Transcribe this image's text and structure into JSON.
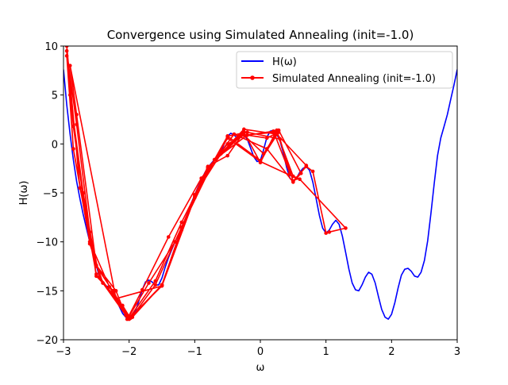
{
  "chart_data": {
    "type": "line",
    "title": "Convergence using Simulated Annealing (init=-1.0)",
    "xlabel": "ω",
    "ylabel": "H(ω)",
    "xlim": [
      -3,
      3
    ],
    "ylim": [
      -20,
      10
    ],
    "xticks": [
      -3,
      -2,
      -1,
      0,
      1,
      2,
      3
    ],
    "xtick_labels": [
      "−3",
      "−2",
      "−1",
      "0",
      "1",
      "2",
      "3"
    ],
    "yticks": [
      -20,
      -15,
      -10,
      -5,
      0,
      5,
      10
    ],
    "ytick_labels": [
      "−20",
      "−15",
      "−10",
      "−5",
      "0",
      "5",
      "10"
    ],
    "grid": false,
    "legend_position": "top-right",
    "series": [
      {
        "name": "H(ω)",
        "color": "#0000ff",
        "marker": "none",
        "x": [
          -3.0,
          -2.95,
          -2.9,
          -2.85,
          -2.8,
          -2.75,
          -2.7,
          -2.65,
          -2.6,
          -2.55,
          -2.5,
          -2.45,
          -2.4,
          -2.35,
          -2.3,
          -2.25,
          -2.2,
          -2.15,
          -2.1,
          -2.05,
          -2.0,
          -1.95,
          -1.9,
          -1.85,
          -1.8,
          -1.75,
          -1.7,
          -1.65,
          -1.6,
          -1.55,
          -1.5,
          -1.45,
          -1.4,
          -1.35,
          -1.3,
          -1.25,
          -1.2,
          -1.15,
          -1.1,
          -1.05,
          -1.0,
          -0.95,
          -0.9,
          -0.85,
          -0.8,
          -0.75,
          -0.7,
          -0.65,
          -0.6,
          -0.55,
          -0.5,
          -0.45,
          -0.4,
          -0.35,
          -0.3,
          -0.25,
          -0.2,
          -0.15,
          -0.1,
          -0.05,
          0.0,
          0.05,
          0.1,
          0.15,
          0.2,
          0.25,
          0.3,
          0.35,
          0.4,
          0.45,
          0.5,
          0.55,
          0.6,
          0.65,
          0.7,
          0.75,
          0.8,
          0.85,
          0.9,
          0.95,
          1.0,
          1.05,
          1.1,
          1.15,
          1.2,
          1.25,
          1.3,
          1.35,
          1.4,
          1.45,
          1.5,
          1.55,
          1.6,
          1.65,
          1.7,
          1.75,
          1.8,
          1.85,
          1.9,
          1.95,
          2.0,
          2.05,
          2.1,
          2.15,
          2.2,
          2.25,
          2.3,
          2.35,
          2.4,
          2.45,
          2.5,
          2.55,
          2.6,
          2.65,
          2.7,
          2.75,
          2.8,
          2.85,
          2.9,
          2.95,
          3.0
        ],
        "y": [
          7.6,
          4.0,
          1.0,
          -1.6,
          -3.8,
          -5.6,
          -7.2,
          -8.6,
          -10.0,
          -11.2,
          -12.4,
          -13.6,
          -14.2,
          -14.5,
          -14.6,
          -15.0,
          -15.8,
          -16.6,
          -17.3,
          -17.7,
          -17.9,
          -17.7,
          -17.0,
          -16.0,
          -14.9,
          -14.1,
          -13.9,
          -14.1,
          -14.4,
          -14.4,
          -13.7,
          -12.6,
          -11.6,
          -10.8,
          -10.0,
          -9.3,
          -8.6,
          -7.8,
          -6.9,
          -6.0,
          -5.2,
          -4.4,
          -3.7,
          -3.0,
          -2.4,
          -2.0,
          -1.6,
          -1.3,
          -0.8,
          0.0,
          0.8,
          1.1,
          0.9,
          0.6,
          0.7,
          0.9,
          0.5,
          -0.4,
          -1.3,
          -1.8,
          -1.7,
          -0.6,
          0.7,
          1.3,
          1.4,
          1.0,
          0.3,
          -0.9,
          -2.4,
          -3.5,
          -3.8,
          -3.5,
          -2.9,
          -2.5,
          -2.3,
          -2.7,
          -3.9,
          -5.6,
          -7.3,
          -8.6,
          -9.1,
          -8.8,
          -8.2,
          -7.8,
          -8.2,
          -9.4,
          -11.1,
          -12.8,
          -14.2,
          -14.9,
          -15.0,
          -14.4,
          -13.6,
          -13.1,
          -13.3,
          -14.2,
          -15.6,
          -16.9,
          -17.7,
          -17.9,
          -17.4,
          -16.2,
          -14.7,
          -13.4,
          -12.8,
          -12.7,
          -13.0,
          -13.5,
          -13.6,
          -13.1,
          -11.9,
          -9.9,
          -7.1,
          -4.0,
          -1.2,
          0.6,
          1.8,
          3.0,
          4.5,
          6.0,
          7.6
        ]
      },
      {
        "name": "Simulated Annealing (init=-1.0)",
        "color": "#ff0000",
        "marker": "circle",
        "x": [
          -1.0,
          -0.8,
          -0.5,
          -0.25,
          0.0,
          0.25,
          0.5,
          0.7,
          0.8,
          1.0,
          1.05,
          1.3,
          0.6,
          0.5,
          0.25,
          -0.25,
          -0.5,
          -0.8,
          -1.0,
          -1.2,
          -1.5,
          -2.0,
          -2.5,
          -2.85,
          -2.95,
          -2.8,
          -2.6,
          -2.5,
          -2.4,
          -2.05,
          -2.0,
          -1.95,
          -1.5,
          -1.2,
          -0.8,
          -0.25,
          0.25,
          0.7,
          0.55,
          0.0,
          -0.5,
          -1.0,
          -1.5,
          -2.0,
          -2.3,
          -2.6,
          -2.85,
          -2.95,
          -2.9,
          -2.7,
          -2.5,
          -2.25,
          -2.0,
          -1.6,
          -1.2,
          -0.9,
          -0.5,
          -0.2,
          0.3,
          0.45,
          0.2,
          -0.3,
          -0.8,
          -1.3,
          -1.7,
          -2.0,
          -2.45,
          -2.75,
          -2.95,
          -2.85,
          -2.6,
          -2.4,
          -2.1,
          -1.98,
          -1.5,
          -1.0,
          -0.6,
          -0.28,
          0.05,
          0.28,
          0.62,
          0.5,
          0.1,
          -0.4,
          -0.9,
          -1.4,
          -1.8,
          -2.03,
          -2.2,
          -2.5,
          -2.8,
          -2.9,
          -2.2,
          -1.5,
          -1.0,
          -0.5,
          0.0,
          0.28,
          0.1,
          -0.2,
          -0.7,
          -1.2,
          -1.6,
          -1.95
        ],
        "y": [
          -5.2,
          -2.3,
          -1.2,
          1.2,
          -1.9,
          1.4,
          -3.8,
          -2.3,
          -2.8,
          -9.1,
          -9.0,
          -8.6,
          -3.6,
          -3.3,
          1.2,
          0.9,
          0.0,
          -2.5,
          -5.4,
          -8.8,
          -14.5,
          -17.8,
          -13.3,
          -0.5,
          9.5,
          2.0,
          -9.0,
          -13.5,
          -14.2,
          -17.5,
          -17.8,
          -17.7,
          -14.4,
          -8.6,
          -2.4,
          1.5,
          1.0,
          -2.2,
          -3.5,
          -1.8,
          0.6,
          -5.2,
          -14.4,
          -17.9,
          -14.6,
          -10.0,
          -0.5,
          9.0,
          5.0,
          -5.0,
          -12.5,
          -15.0,
          -17.8,
          -14.0,
          -8.0,
          -4.0,
          0.8,
          1.2,
          0.5,
          -3.0,
          1.3,
          0.8,
          -2.4,
          -10.0,
          -14.2,
          -17.6,
          -13.6,
          -4.5,
          10.0,
          1.8,
          -10.2,
          -14.2,
          -16.5,
          -17.8,
          -14.4,
          -5.2,
          -1.0,
          1.1,
          -1.0,
          1.4,
          -3.0,
          -3.9,
          -0.5,
          1.0,
          -3.5,
          -9.5,
          -14.9,
          -17.9,
          -15.0,
          -12.4,
          3.0,
          8.0,
          -15.8,
          -14.5,
          -5.5,
          0.8,
          -1.7,
          1.2,
          0.6,
          0.9,
          -1.6,
          -8.5,
          -14.4,
          -17.6
        ]
      }
    ],
    "legend": [
      {
        "label": "H(ω)",
        "color": "#0000ff",
        "marker": "none"
      },
      {
        "label": "Simulated Annealing (init=-1.0)",
        "color": "#ff0000",
        "marker": "circle"
      }
    ]
  }
}
